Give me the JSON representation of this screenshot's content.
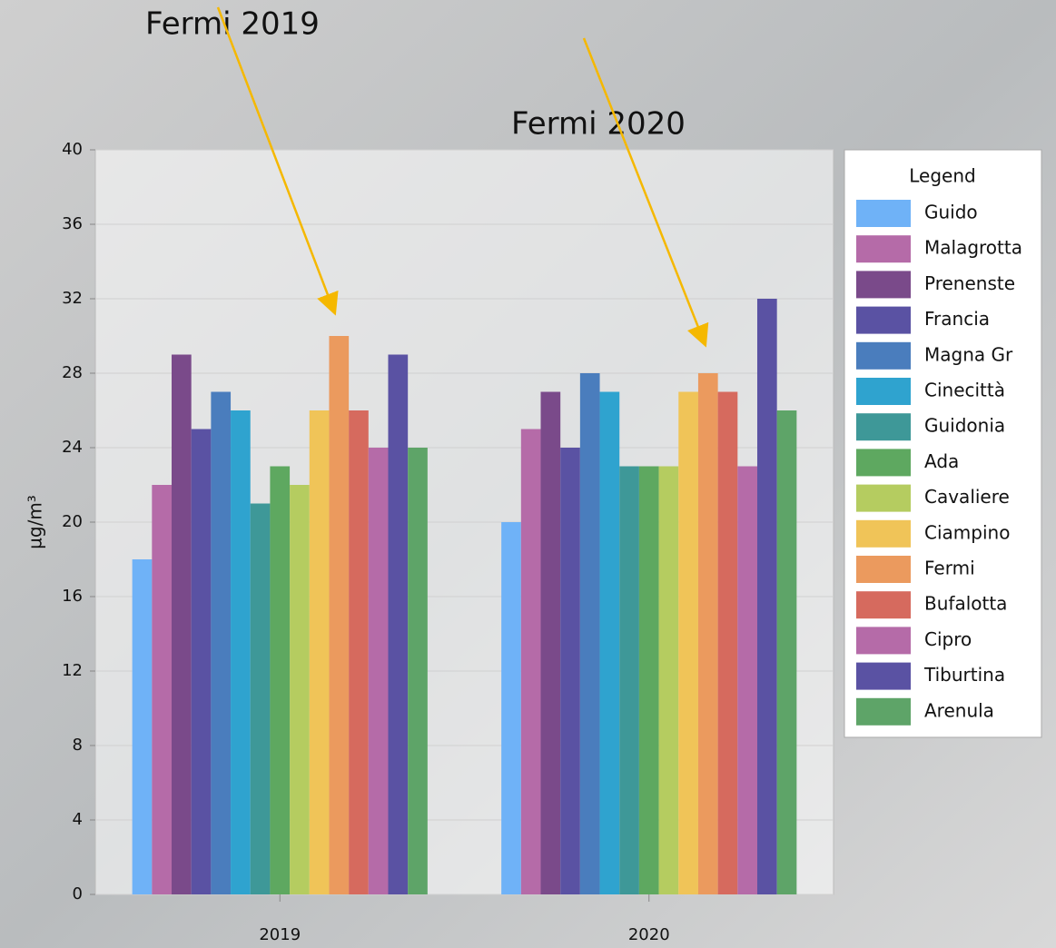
{
  "chart_data": {
    "type": "bar",
    "ylabel": "µg/m³",
    "legend_title": "Legend",
    "legend": "right",
    "grid": true,
    "annotations": [
      {
        "text": "Fermi 2019"
      },
      {
        "text": "Fermi 2020"
      }
    ],
    "categories": [
      "2019",
      "2020"
    ],
    "ylim": [
      0,
      40
    ],
    "yticks": [
      0,
      4,
      8,
      12,
      16,
      20,
      24,
      28,
      32,
      36,
      40
    ],
    "series": [
      {
        "name": "Guido",
        "color": "#6fb2f7",
        "values": [
          18,
          20
        ]
      },
      {
        "name": "Malagrotta",
        "color": "#b56ba8",
        "values": [
          22,
          25
        ]
      },
      {
        "name": "Prenenste",
        "color": "#7a4a8a",
        "values": [
          29,
          27
        ]
      },
      {
        "name": "Francia",
        "color": "#5a52a3",
        "values": [
          25,
          24
        ]
      },
      {
        "name": "Magna Gr",
        "color": "#4a7dbd",
        "values": [
          27,
          28
        ]
      },
      {
        "name": "Cinecittà",
        "color": "#2fa3cf",
        "values": [
          26,
          27
        ]
      },
      {
        "name": "Guidonia",
        "color": "#3e9898",
        "values": [
          21,
          23
        ]
      },
      {
        "name": "Ada",
        "color": "#5ea860",
        "values": [
          23,
          23
        ]
      },
      {
        "name": "Cavaliere",
        "color": "#b5cc60",
        "values": [
          22,
          23
        ]
      },
      {
        "name": "Ciampino",
        "color": "#f0c458",
        "values": [
          26,
          27
        ]
      },
      {
        "name": "Fermi",
        "color": "#eb9a5e",
        "values": [
          30,
          28
        ]
      },
      {
        "name": "Bufalotta",
        "color": "#d66a5e",
        "values": [
          26,
          27
        ]
      },
      {
        "name": "Cipro",
        "color": "#b56ba8",
        "values": [
          24,
          23
        ]
      },
      {
        "name": "Tiburtina",
        "color": "#5a52a3",
        "values": [
          29,
          32
        ]
      },
      {
        "name": "Arenula",
        "color": "#5ea468",
        "values": [
          24,
          26
        ]
      }
    ]
  }
}
